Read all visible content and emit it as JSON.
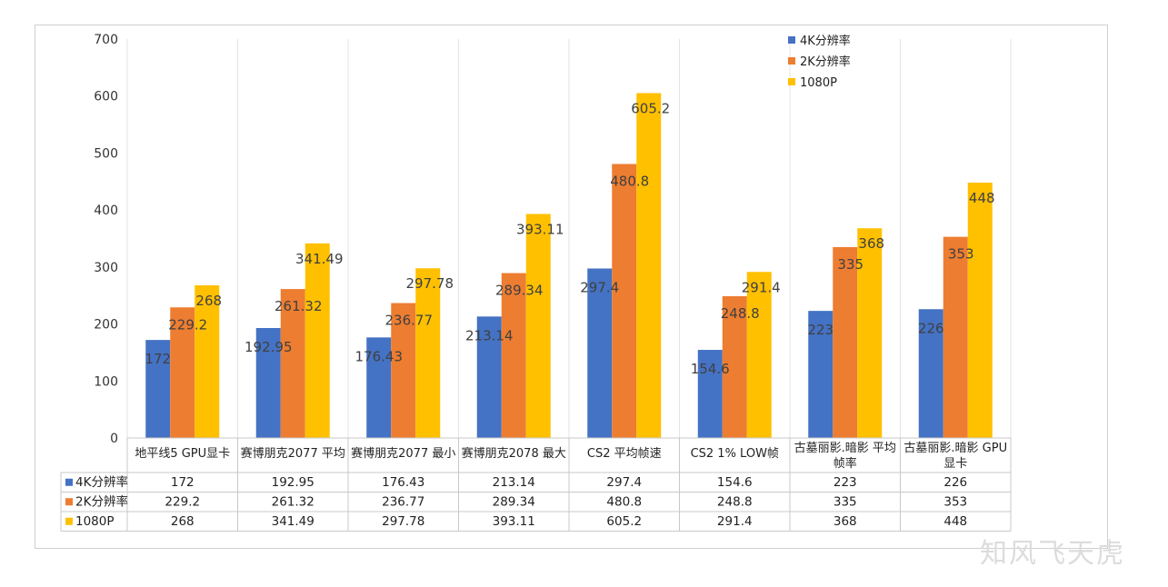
{
  "chart_data": {
    "type": "bar",
    "categories": [
      [
        "地平线5 GPU显卡"
      ],
      [
        "赛博朋克2077 平均"
      ],
      [
        "赛博朋克2077 最小"
      ],
      [
        "赛博朋克2078 最大"
      ],
      [
        "CS2 平均帧速"
      ],
      [
        "CS2 1% LOW帧"
      ],
      [
        "古墓丽影.暗影 平均",
        "帧率"
      ],
      [
        "古墓丽影.暗影 GPU",
        "显卡"
      ]
    ],
    "series": [
      {
        "name": "4K分辨率",
        "color": "#4472c4",
        "values": [
          172,
          192.95,
          176.43,
          213.14,
          297.4,
          154.6,
          223,
          226
        ],
        "labels": [
          "172",
          "192.95",
          "176.43",
          "213.14",
          "297.4",
          "154.6",
          "223",
          "226"
        ]
      },
      {
        "name": "2K分辨率",
        "color": "#ed7d31",
        "values": [
          229.2,
          261.32,
          236.77,
          289.34,
          480.8,
          248.8,
          335,
          353
        ],
        "labels": [
          "229.2",
          "261.32",
          "236.77",
          "289.34",
          "480.8",
          "248.8",
          "335",
          "353"
        ]
      },
      {
        "name": "1080P",
        "color": "#ffc000",
        "values": [
          268,
          341.49,
          297.78,
          393.11,
          605.2,
          291.4,
          368,
          448
        ],
        "labels": [
          "268",
          "341.49",
          "297.78",
          "393.11",
          "605.2",
          "291.4",
          "368",
          "448"
        ]
      }
    ],
    "ylim": [
      0,
      700
    ],
    "yticks": [
      0,
      100,
      200,
      300,
      400,
      500,
      600,
      700
    ],
    "legend_position": "top-right",
    "data_table": true
  },
  "watermark": "知风飞天虎"
}
